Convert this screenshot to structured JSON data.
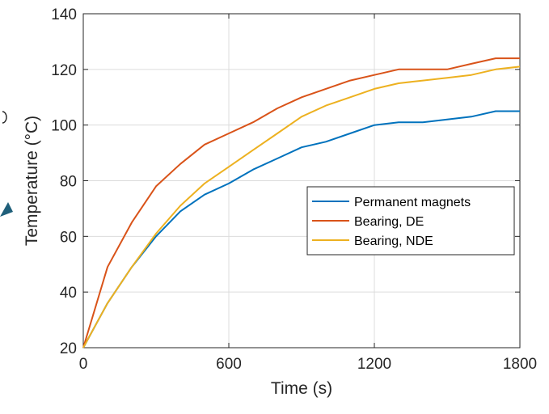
{
  "chart_data": {
    "type": "line",
    "xlabel": "Time (s)",
    "ylabel": "Temperature (°C)",
    "xlim": [
      0,
      1800
    ],
    "ylim": [
      20,
      140
    ],
    "xticks": [
      0,
      600,
      1200,
      1800
    ],
    "yticks": [
      20,
      40,
      60,
      80,
      100,
      120,
      140
    ],
    "xtick_labels": [
      "0",
      "600",
      "1200",
      "1800"
    ],
    "ytick_labels": [
      "20",
      "40",
      "60",
      "80",
      "100",
      "120",
      "140"
    ],
    "grid": true,
    "legend_position": "center-right",
    "series": [
      {
        "name": "Permanent magnets",
        "color": "#0072BD",
        "x": [
          0,
          100,
          200,
          300,
          400,
          500,
          600,
          700,
          800,
          900,
          1000,
          1100,
          1200,
          1300,
          1400,
          1500,
          1600,
          1700,
          1800
        ],
        "y": [
          20,
          36,
          49,
          60,
          69,
          75,
          79,
          84,
          88,
          92,
          94,
          97,
          100,
          101,
          101,
          102,
          103,
          105,
          105
        ]
      },
      {
        "name": "Bearing, DE",
        "color": "#D95319",
        "x": [
          0,
          100,
          200,
          300,
          400,
          500,
          600,
          700,
          800,
          900,
          1000,
          1100,
          1200,
          1300,
          1400,
          1500,
          1600,
          1700,
          1800
        ],
        "y": [
          20,
          49,
          65,
          78,
          86,
          93,
          97,
          101,
          106,
          110,
          113,
          116,
          118,
          120,
          120,
          120,
          122,
          124,
          124
        ]
      },
      {
        "name": "Bearing, NDE",
        "color": "#EDB120",
        "x": [
          0,
          100,
          200,
          300,
          400,
          500,
          600,
          700,
          800,
          900,
          1000,
          1100,
          1200,
          1300,
          1400,
          1500,
          1600,
          1700,
          1800
        ],
        "y": [
          20,
          36,
          49,
          61,
          71,
          79,
          85,
          91,
          97,
          103,
          107,
          110,
          113,
          115,
          116,
          117,
          118,
          120,
          121
        ]
      }
    ]
  }
}
